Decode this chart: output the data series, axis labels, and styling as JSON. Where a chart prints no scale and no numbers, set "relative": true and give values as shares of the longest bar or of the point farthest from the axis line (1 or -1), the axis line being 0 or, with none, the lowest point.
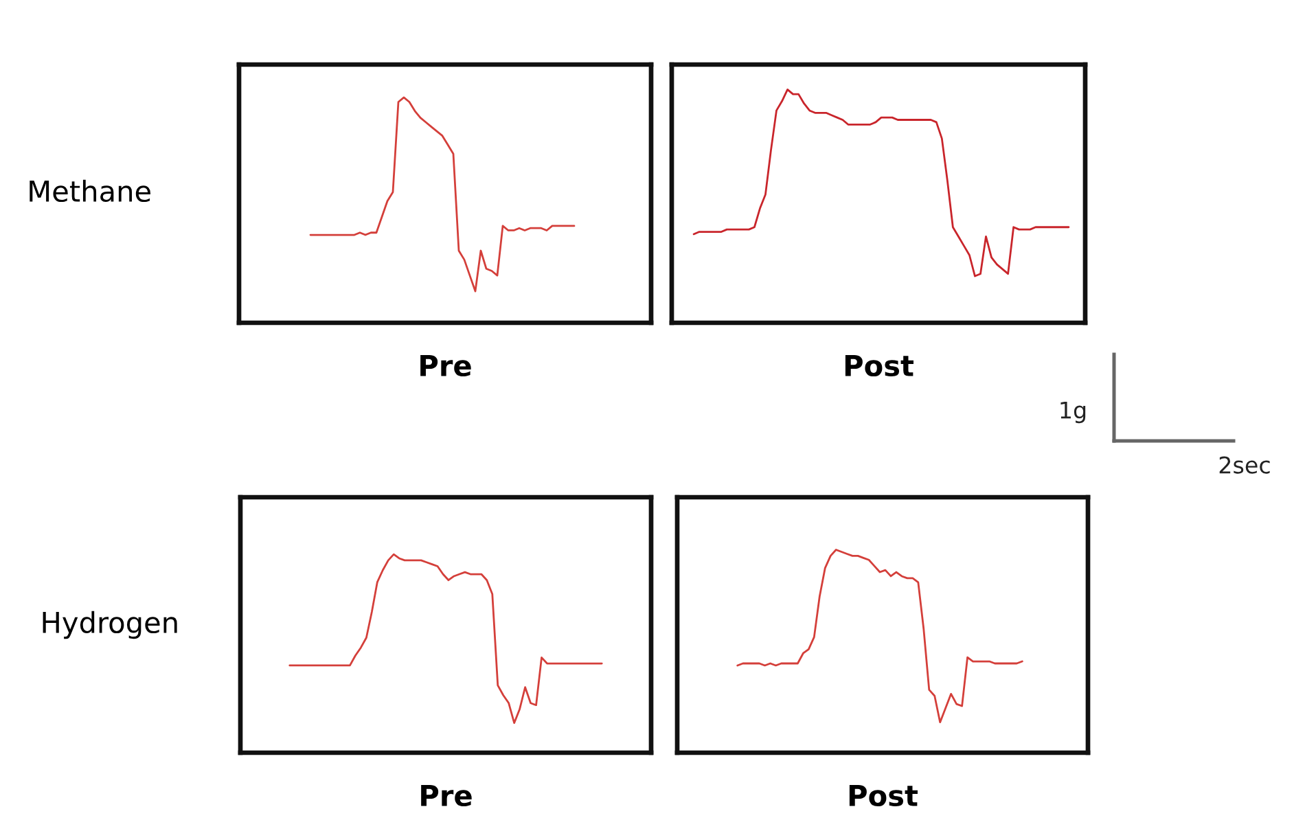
{
  "chart_data": [
    {
      "type": "line",
      "xlabel": "Pre",
      "ylabel": "Methane",
      "relative": true,
      "categories": [
        null,
        null,
        null,
        null,
        null,
        null,
        null,
        null,
        null,
        null,
        null,
        null,
        null,
        null,
        null,
        null,
        null,
        null,
        null,
        null,
        null,
        null,
        null,
        null,
        null,
        null,
        null,
        null,
        null,
        null,
        null,
        null,
        null,
        null,
        null,
        null,
        null,
        null,
        null,
        null,
        null,
        null,
        null,
        null,
        null,
        null,
        null,
        null,
        null,
        null,
        null,
        null,
        null,
        null,
        null,
        null,
        null,
        null,
        null,
        null,
        null,
        null,
        null,
        null,
        null,
        null,
        null,
        null,
        null,
        null,
        null,
        null,
        null,
        null,
        null,
        null
      ],
      "series": [
        {
          "color": "#d43f3a",
          "values": [
            null,
            null,
            null,
            null,
            null,
            null,
            null,
            null,
            null,
            null,
            null,
            null,
            null,
            0.39,
            0.39,
            0.39,
            0.39,
            0.39,
            0.39,
            0.39,
            0.39,
            0.39,
            0.4,
            0.39,
            0.4,
            0.4,
            0.47,
            0.54,
            0.58,
            0.98,
            1.0,
            0.98,
            0.94,
            0.91,
            0.89,
            0.87,
            0.85,
            0.83,
            0.79,
            0.75,
            0.32,
            0.28,
            0.21,
            0.14,
            0.32,
            0.24,
            0.23,
            0.21,
            0.43,
            0.41,
            0.41,
            0.42,
            0.41,
            0.42,
            0.42,
            0.42,
            0.41,
            0.43,
            0.43,
            0.43,
            0.43,
            0.43,
            null,
            null,
            null,
            null,
            null,
            null,
            null,
            null,
            null,
            null,
            null,
            null,
            null,
            null
          ]
        }
      ]
    },
    {
      "type": "line",
      "xlabel": "Post",
      "relative": true,
      "annotations": [
        "1g",
        "2sec"
      ],
      "categories": [
        null,
        null,
        null,
        null,
        null,
        null,
        null,
        null,
        null,
        null,
        null,
        null,
        null,
        null,
        null,
        null,
        null,
        null,
        null,
        null,
        null,
        null,
        null,
        null,
        null,
        null,
        null,
        null,
        null,
        null,
        null,
        null,
        null,
        null,
        null,
        null,
        null,
        null,
        null,
        null,
        null,
        null,
        null,
        null,
        null,
        null,
        null,
        null,
        null,
        null,
        null,
        null,
        null,
        null,
        null,
        null,
        null,
        null,
        null,
        null,
        null,
        null,
        null,
        null,
        null,
        null,
        null,
        null,
        null,
        null,
        null,
        null,
        null,
        null,
        null,
        null
      ],
      "series": [
        {
          "color": "#c9252b",
          "values": [
            null,
            null,
            null,
            null,
            0.38,
            0.39,
            0.39,
            0.39,
            0.39,
            0.39,
            0.4,
            0.4,
            0.4,
            0.4,
            0.4,
            0.41,
            0.49,
            0.55,
            0.74,
            0.91,
            0.95,
            1.0,
            0.98,
            0.98,
            0.94,
            0.91,
            0.9,
            0.9,
            0.9,
            0.89,
            0.88,
            0.87,
            0.85,
            0.85,
            0.85,
            0.85,
            0.85,
            0.86,
            0.88,
            0.88,
            0.88,
            0.87,
            0.87,
            0.87,
            0.87,
            0.87,
            0.87,
            0.87,
            0.86,
            0.79,
            0.61,
            0.41,
            0.37,
            0.33,
            0.29,
            0.2,
            0.21,
            0.37,
            0.28,
            0.25,
            0.23,
            0.21,
            0.41,
            0.4,
            0.4,
            0.4,
            0.41,
            0.41,
            0.41,
            0.41,
            0.41,
            0.41,
            0.41,
            null,
            null,
            null
          ]
        }
      ]
    },
    {
      "type": "line",
      "xlabel": "Pre",
      "ylabel": "Hydrogen",
      "relative": true,
      "categories": [
        null,
        null,
        null,
        null,
        null,
        null,
        null,
        null,
        null,
        null,
        null,
        null,
        null,
        null,
        null,
        null,
        null,
        null,
        null,
        null,
        null,
        null,
        null,
        null,
        null,
        null,
        null,
        null,
        null,
        null,
        null,
        null,
        null,
        null,
        null,
        null,
        null,
        null,
        null,
        null,
        null,
        null,
        null,
        null,
        null,
        null,
        null,
        null,
        null,
        null,
        null,
        null,
        null,
        null,
        null,
        null,
        null,
        null,
        null,
        null,
        null,
        null,
        null,
        null,
        null,
        null,
        null,
        null,
        null,
        null,
        null,
        null,
        null,
        null,
        null,
        null
      ],
      "series": [
        {
          "color": "#d43f3a",
          "values": [
            null,
            null,
            null,
            null,
            null,
            null,
            null,
            null,
            null,
            0.44,
            0.44,
            0.44,
            0.44,
            0.44,
            0.44,
            0.44,
            0.44,
            0.44,
            0.44,
            0.44,
            0.44,
            0.49,
            0.53,
            0.58,
            0.71,
            0.86,
            0.92,
            0.97,
            1.0,
            0.98,
            0.97,
            0.97,
            0.97,
            0.97,
            0.96,
            0.95,
            0.94,
            0.9,
            0.87,
            0.89,
            0.9,
            0.91,
            0.9,
            0.9,
            0.9,
            0.87,
            0.8,
            0.34,
            0.29,
            0.25,
            0.15,
            0.22,
            0.33,
            0.25,
            0.24,
            0.48,
            0.45,
            0.45,
            0.45,
            0.45,
            0.45,
            0.45,
            0.45,
            0.45,
            0.45,
            0.45,
            0.45,
            null,
            null,
            null,
            null,
            null,
            null,
            null,
            null,
            null
          ]
        }
      ]
    },
    {
      "type": "line",
      "xlabel": "Post",
      "relative": true,
      "categories": [
        null,
        null,
        null,
        null,
        null,
        null,
        null,
        null,
        null,
        null,
        null,
        null,
        null,
        null,
        null,
        null,
        null,
        null,
        null,
        null,
        null,
        null,
        null,
        null,
        null,
        null,
        null,
        null,
        null,
        null,
        null,
        null,
        null,
        null,
        null,
        null,
        null,
        null,
        null,
        null,
        null,
        null,
        null,
        null,
        null,
        null,
        null,
        null,
        null,
        null,
        null,
        null,
        null,
        null,
        null,
        null,
        null,
        null,
        null,
        null,
        null,
        null,
        null,
        null,
        null,
        null,
        null,
        null,
        null,
        null,
        null,
        null,
        null,
        null,
        null,
        null
      ],
      "series": [
        {
          "color": "#d43f3a",
          "values": [
            null,
            null,
            null,
            null,
            null,
            null,
            null,
            null,
            null,
            null,
            null,
            0.43,
            0.44,
            0.44,
            0.44,
            0.44,
            0.43,
            0.44,
            0.43,
            0.44,
            0.44,
            0.44,
            0.44,
            0.49,
            0.51,
            0.57,
            0.77,
            0.91,
            0.97,
            1.0,
            0.99,
            0.98,
            0.97,
            0.97,
            0.96,
            0.95,
            0.92,
            0.89,
            0.9,
            0.87,
            0.89,
            0.87,
            0.86,
            0.86,
            0.84,
            0.61,
            0.31,
            0.28,
            0.15,
            0.22,
            0.29,
            0.24,
            0.23,
            0.47,
            0.45,
            0.45,
            0.45,
            0.45,
            0.44,
            0.44,
            0.44,
            0.44,
            0.44,
            0.45,
            null,
            null,
            null,
            null,
            null,
            null,
            null,
            null,
            null,
            null,
            null,
            null
          ]
        }
      ]
    }
  ]
}
